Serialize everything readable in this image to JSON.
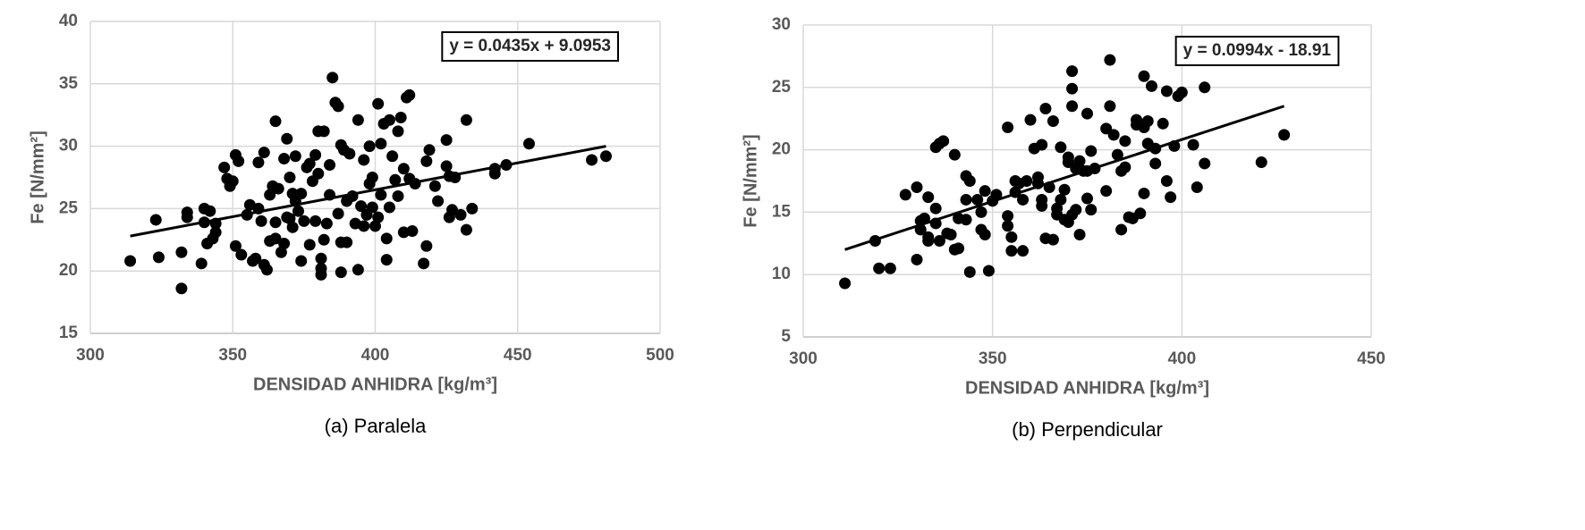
{
  "chart_data": [
    {
      "type": "scatter",
      "caption": "(a) Paralela",
      "xlabel": "DENSIDAD ANHIDRA [kg/m³]",
      "ylabel": "Fe  [N/mm²]",
      "annotation": "y = 0.0435x + 9.0953",
      "color": "#000000",
      "grid": true,
      "xlim": [
        300,
        500
      ],
      "xticks": [
        300,
        350,
        400,
        450,
        500
      ],
      "ylim": [
        15,
        40
      ],
      "yticks": [
        15,
        20,
        25,
        30,
        35,
        40
      ],
      "trendline": {
        "x": [
          314,
          481
        ],
        "values": [
          22.8,
          30.0
        ]
      },
      "x": [
        314,
        323,
        324,
        332,
        332,
        334,
        334,
        339,
        340,
        340,
        341,
        342,
        343,
        344,
        344,
        347,
        348,
        349,
        350,
        351,
        351,
        352,
        353,
        355,
        356,
        357,
        358,
        359,
        359,
        360,
        361,
        361,
        362,
        363,
        363,
        364,
        365,
        365,
        365,
        366,
        367,
        368,
        368,
        369,
        369,
        370,
        370,
        371,
        371,
        372,
        372,
        373,
        374,
        374,
        375,
        376,
        377,
        377,
        378,
        379,
        379,
        380,
        380,
        381,
        381,
        381,
        382,
        382,
        383,
        384,
        384,
        385,
        386,
        387,
        387,
        388,
        388,
        388,
        389,
        390,
        390,
        391,
        392,
        393,
        394,
        394,
        395,
        396,
        396,
        397,
        398,
        398,
        399,
        399,
        400,
        401,
        401,
        402,
        402,
        403,
        404,
        404,
        405,
        405,
        406,
        407,
        408,
        408,
        409,
        410,
        410,
        411,
        412,
        412,
        413,
        414,
        417,
        418,
        418,
        419,
        421,
        422,
        425,
        425,
        426,
        426,
        427,
        428,
        430,
        432,
        432,
        434,
        442,
        442,
        446,
        454,
        476,
        481
      ],
      "values": [
        20.8,
        24.1,
        21.1,
        21.5,
        18.6,
        24.7,
        24.3,
        20.6,
        25,
        23.9,
        22.2,
        24.8,
        22.6,
        23.1,
        23.8,
        28.3,
        27.4,
        26.8,
        27.2,
        22,
        29.3,
        28.8,
        21.3,
        24.5,
        25.3,
        20.8,
        21,
        28.7,
        25,
        24,
        20.5,
        29.5,
        20.1,
        22.4,
        26.1,
        26.8,
        22.6,
        32,
        23.9,
        26.6,
        21.5,
        22.2,
        29,
        30.6,
        24.3,
        24.2,
        27.5,
        26.2,
        23.5,
        29.2,
        25.6,
        24.8,
        20.8,
        26.2,
        24,
        28.3,
        22.1,
        28.6,
        27.2,
        29.3,
        24,
        27.8,
        31.2,
        21,
        19.7,
        20.2,
        31.2,
        22.5,
        23.8,
        28.5,
        26.1,
        35.5,
        33.5,
        33.2,
        24.6,
        22.3,
        19.9,
        30.1,
        29.7,
        25.6,
        22.3,
        29.4,
        26,
        23.8,
        32.1,
        20.1,
        25.2,
        28.9,
        23.6,
        24.5,
        30,
        27,
        27.5,
        25.1,
        23.6,
        24.3,
        33.4,
        30.2,
        26.1,
        31.8,
        20.9,
        22.6,
        25.1,
        32.1,
        29.2,
        27.3,
        31.2,
        26,
        32.3,
        23.1,
        28.2,
        33.9,
        34.1,
        27.4,
        23.2,
        27,
        20.6,
        22,
        28.8,
        29.7,
        26.8,
        25.6,
        30.5,
        28.4,
        27.6,
        24.3,
        24.9,
        27.5,
        24.5,
        32.1,
        23.3,
        25,
        27.8,
        28.2,
        28.5,
        30.2,
        28.9,
        29.2
      ]
    },
    {
      "type": "scatter",
      "caption": "(b) Perpendicular",
      "xlabel": "DENSIDAD ANHIDRA [kg/m³]",
      "ylabel": "Fe  [N/mm²]",
      "annotation": "y = 0.0994x - 18.91",
      "color": "#000000",
      "grid": true,
      "xlim": [
        300,
        450
      ],
      "xticks": [
        300,
        350,
        400,
        450
      ],
      "ylim": [
        5,
        30
      ],
      "yticks": [
        5,
        10,
        15,
        20,
        25,
        30
      ],
      "trendline": {
        "x": [
          311,
          427
        ],
        "values": [
          12.0,
          23.5
        ]
      },
      "x": [
        311,
        319,
        320,
        323,
        327,
        330,
        330,
        331,
        331,
        332,
        333,
        333,
        333,
        335,
        335,
        335,
        336,
        336,
        337,
        338,
        339,
        340,
        340,
        341,
        341,
        343,
        343,
        343,
        344,
        344,
        346,
        347,
        347,
        348,
        348,
        349,
        350,
        351,
        354,
        354,
        354,
        355,
        355,
        356,
        356,
        357,
        358,
        358,
        359,
        360,
        361,
        362,
        362,
        363,
        363,
        363,
        364,
        364,
        365,
        366,
        366,
        367,
        367,
        368,
        368,
        369,
        369,
        370,
        370,
        370,
        371,
        371,
        371,
        371,
        372,
        372,
        373,
        373,
        374,
        375,
        375,
        375,
        376,
        376,
        377,
        380,
        380,
        381,
        381,
        382,
        383,
        384,
        384,
        385,
        385,
        386,
        387,
        388,
        388,
        389,
        390,
        390,
        390,
        391,
        391,
        392,
        393,
        393,
        395,
        396,
        396,
        397,
        398,
        399,
        400,
        403,
        404,
        406,
        406,
        421,
        427
      ],
      "values": [
        9.3,
        12.7,
        10.5,
        10.5,
        16.4,
        17,
        11.2,
        13.6,
        14.3,
        14.5,
        12.7,
        13,
        16.2,
        14.1,
        15.3,
        20.2,
        20.5,
        12.7,
        20.7,
        13.3,
        13.2,
        12,
        19.6,
        12.1,
        14.5,
        17.9,
        16,
        14.4,
        10.2,
        17.5,
        16,
        15,
        13.6,
        13.2,
        16.7,
        10.3,
        15.9,
        16.4,
        21.8,
        14.7,
        13.9,
        13,
        11.9,
        16.6,
        17.5,
        17.3,
        11.9,
        16,
        17.5,
        22.4,
        20.1,
        17.3,
        17.8,
        16,
        15.5,
        20.4,
        23.3,
        12.9,
        17,
        12.8,
        22.3,
        15.3,
        14.8,
        16,
        20.2,
        14.4,
        16.8,
        19,
        19.4,
        14.2,
        23.5,
        24.9,
        26.3,
        14.8,
        18.5,
        15.2,
        13.2,
        19.1,
        18.3,
        18.3,
        22.9,
        16.1,
        15.2,
        19.9,
        18.5,
        16.7,
        21.7,
        23.5,
        27.2,
        21.2,
        19.6,
        13.6,
        18.3,
        18.6,
        20.7,
        14.6,
        14.5,
        22.4,
        22,
        14.9,
        16.5,
        25.9,
        21.8,
        22.3,
        20.5,
        25.1,
        18.9,
        20.1,
        22.1,
        24.7,
        17.5,
        16.2,
        20.3,
        24.3,
        24.6,
        20.4,
        17,
        25,
        18.9,
        19,
        21.2
      ]
    }
  ]
}
